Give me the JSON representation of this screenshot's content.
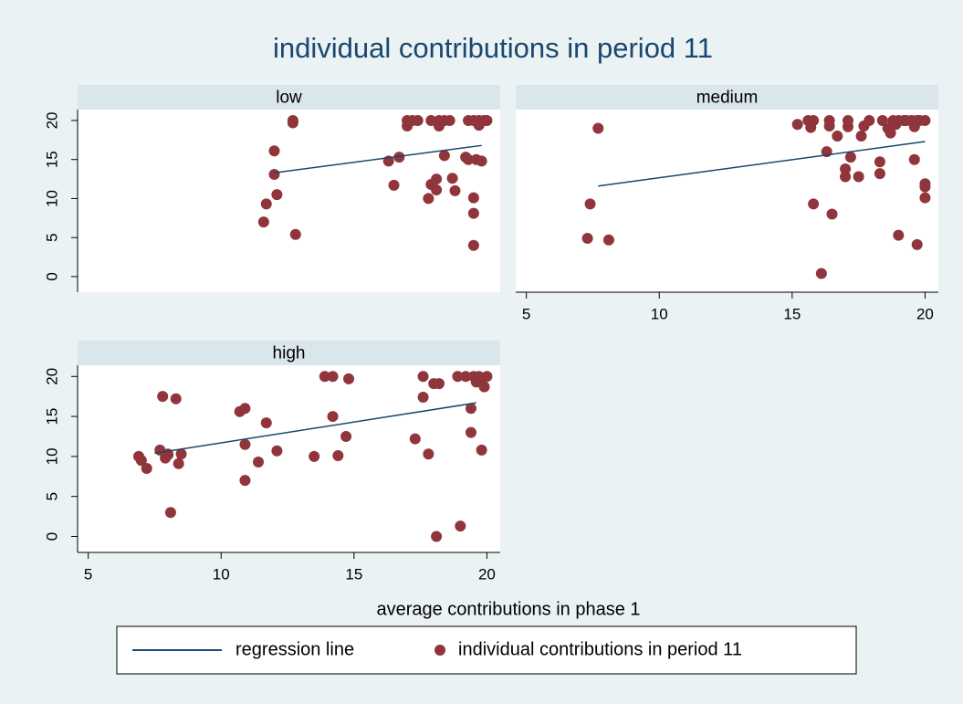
{
  "title": "individual contributions in period 11",
  "x_label": "average contributions in phase 1",
  "chart_data": [
    {
      "type": "scatter",
      "title": "low",
      "xlim": [
        4.6,
        20.5
      ],
      "ylim": [
        -2,
        21.4
      ],
      "yticks": [
        0,
        5,
        10,
        15,
        20
      ],
      "series": [
        {
          "name": "regression line",
          "type": "line",
          "color": "#1a476f",
          "x": [
            12,
            19.8
          ],
          "values": [
            13.3,
            16.8
          ]
        },
        {
          "name": "individual contributions in period 11",
          "type": "scatter",
          "color": "#90353b",
          "x": [
            11.6,
            11.7,
            12.1,
            12.0,
            12.0,
            12.7,
            12.7,
            12.8,
            16.3,
            16.5,
            16.7,
            17.0,
            17.0,
            17.2,
            17.4,
            17.8,
            17.9,
            17.9,
            18.1,
            18.1,
            18.2,
            18.2,
            18.4,
            18.4,
            18.6,
            18.7,
            18.8,
            19.2,
            19.3,
            19.3,
            19.5,
            19.5,
            19.5,
            19.5,
            19.6,
            19.7,
            19.7,
            19.8,
            19.9,
            20
          ],
          "values": [
            7,
            9.3,
            10.5,
            13.1,
            16.1,
            20,
            19.7,
            5.4,
            14.8,
            11.7,
            15.3,
            19.3,
            20,
            20,
            20,
            10,
            11.8,
            20,
            12.5,
            11.1,
            19.3,
            20,
            15.5,
            20,
            20,
            12.6,
            11,
            15.3,
            15,
            20,
            20,
            10.1,
            8.1,
            4,
            15,
            19.4,
            20,
            14.8,
            20,
            20
          ]
        }
      ]
    },
    {
      "type": "scatter",
      "title": "medium",
      "xlim": [
        4.6,
        20.5
      ],
      "ylim": [
        -2,
        21.4
      ],
      "xticks": [
        5,
        10,
        15,
        20
      ],
      "series": [
        {
          "name": "regression line",
          "type": "line",
          "color": "#1a476f",
          "x": [
            7.7,
            20
          ],
          "values": [
            11.6,
            17.3
          ]
        },
        {
          "name": "individual contributions in period 11",
          "type": "scatter",
          "color": "#90353b",
          "x": [
            7.4,
            7.3,
            7.7,
            8.1,
            15.2,
            15.6,
            15.7,
            15.8,
            15.8,
            16.1,
            16.3,
            16.4,
            16.4,
            16.5,
            16.7,
            17.0,
            17.0,
            17.1,
            17.1,
            17.2,
            17.5,
            17.6,
            17.7,
            17.9,
            18.3,
            18.3,
            18.4,
            18.6,
            18.7,
            18.8,
            18.9,
            19.0,
            19.0,
            19.2,
            19.3,
            19.5,
            19.6,
            19.6,
            19.7,
            19.7,
            19.8,
            20,
            20,
            20,
            20
          ],
          "values": [
            9.3,
            4.9,
            19,
            4.7,
            19.5,
            20,
            19.1,
            20,
            9.3,
            0.4,
            16,
            19.3,
            20,
            8,
            18,
            13.8,
            12.8,
            19.2,
            20,
            15.3,
            12.8,
            18,
            19.3,
            20,
            13.2,
            14.7,
            20,
            19,
            18.4,
            20,
            19.5,
            5.3,
            20,
            20,
            20,
            20,
            15,
            19.2,
            4.1,
            20,
            20,
            20,
            11.9,
            11.5,
            10.1
          ]
        }
      ]
    },
    {
      "type": "scatter",
      "title": "high",
      "xlim": [
        4.6,
        20.5
      ],
      "ylim": [
        -2,
        21.4
      ],
      "xticks": [
        5,
        10,
        15,
        20
      ],
      "yticks": [
        0,
        5,
        10,
        15,
        20
      ],
      "series": [
        {
          "name": "regression line",
          "type": "line",
          "color": "#1a476f",
          "x": [
            7.5,
            19.6
          ],
          "values": [
            10.4,
            16.7
          ]
        },
        {
          "name": "individual contributions in period 11",
          "type": "scatter",
          "color": "#90353b",
          "x": [
            6.9,
            7.0,
            7.2,
            7.7,
            7.8,
            7.9,
            8.0,
            8.0,
            8.1,
            8.3,
            8.4,
            8.5,
            10.7,
            10.9,
            10.9,
            10.9,
            11.4,
            11.7,
            12.1,
            13.5,
            13.9,
            14.2,
            14.2,
            14.4,
            14.7,
            14.8,
            17.3,
            17.6,
            17.6,
            17.8,
            18.0,
            18.1,
            18.2,
            18.9,
            19.0,
            19.2,
            19.4,
            19.4,
            19.5,
            19.6,
            19.7,
            19.8,
            19.8,
            19.9,
            20
          ],
          "values": [
            10,
            9.5,
            8.5,
            10.8,
            17.5,
            9.8,
            10.2,
            10.3,
            3,
            17.2,
            9.1,
            10.3,
            15.6,
            16,
            11.5,
            7,
            9.3,
            14.2,
            10.7,
            10,
            20,
            20,
            15,
            10.1,
            12.5,
            19.7,
            12.2,
            20,
            17.4,
            10.3,
            19.1,
            0,
            19.1,
            20,
            1.3,
            20,
            13,
            16,
            20,
            19.3,
            20,
            10.8,
            19.5,
            18.7,
            20
          ]
        }
      ]
    }
  ]
}
